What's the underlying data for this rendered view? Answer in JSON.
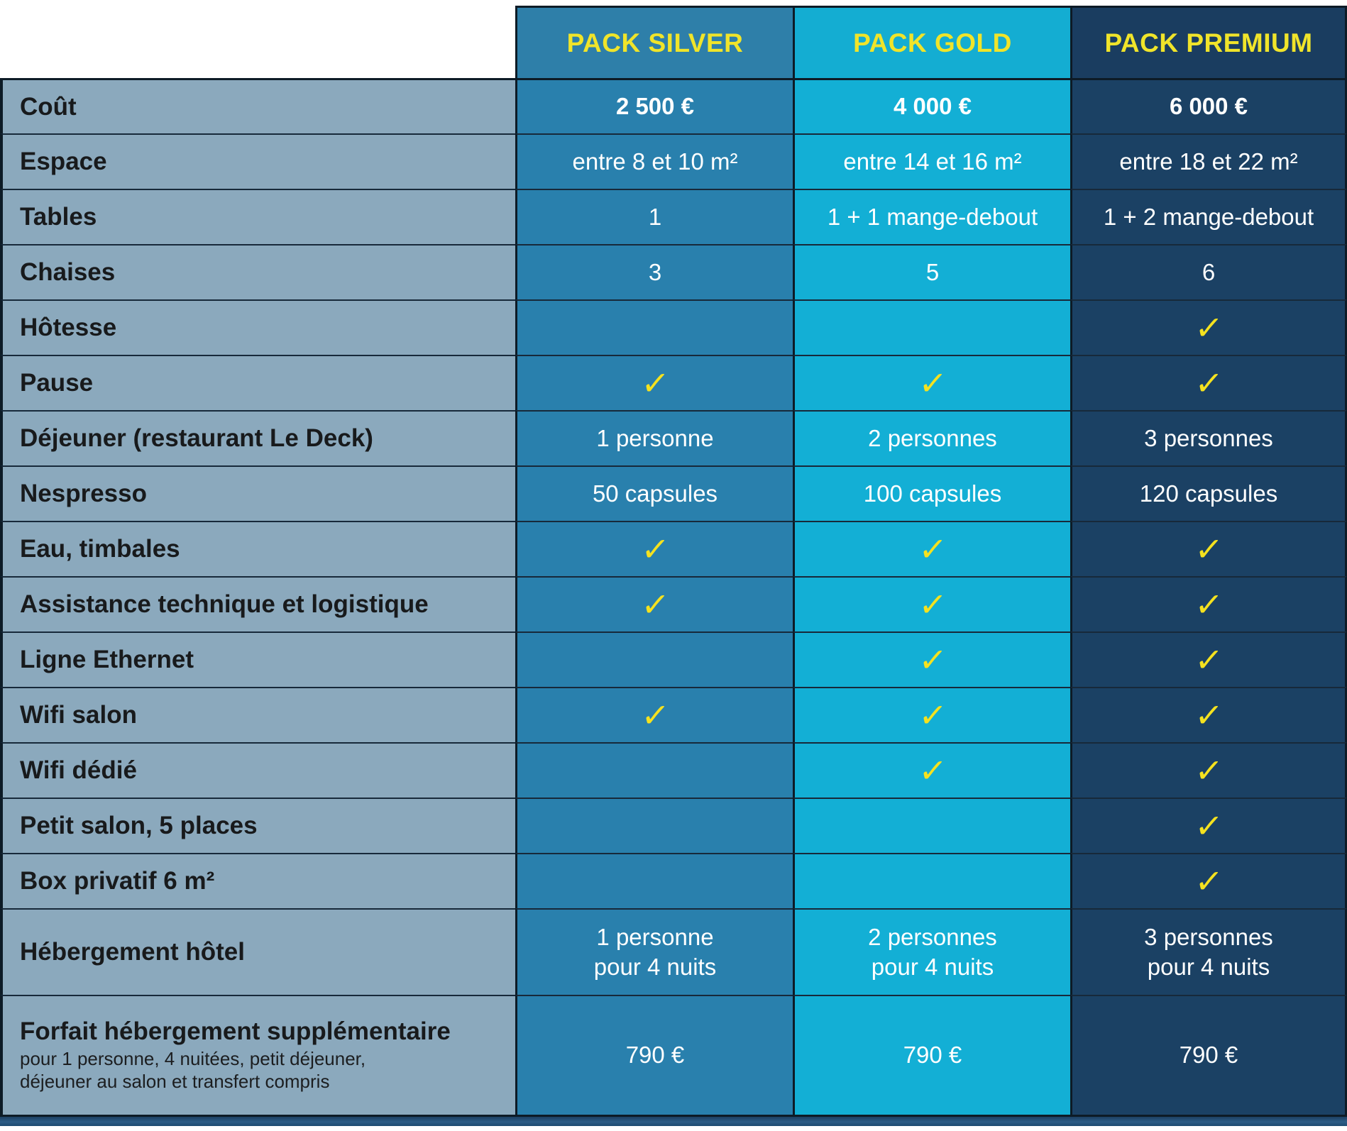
{
  "table": {
    "columns": [
      {
        "id": "silver",
        "label": "PACK SILVER"
      },
      {
        "id": "gold",
        "label": "PACK GOLD"
      },
      {
        "id": "premium",
        "label": "PACK PREMIUM"
      }
    ],
    "rows": [
      {
        "label": "Coût",
        "values": [
          "2 500 €",
          "4 000 €",
          "6 000 €"
        ],
        "bold_values": true
      },
      {
        "label": "Espace",
        "values": [
          "entre 8 et 10 m²",
          "entre 14 et 16 m²",
          "entre 18 et 22 m²"
        ]
      },
      {
        "label": "Tables",
        "values": [
          "1",
          "1 + 1 mange-debout",
          "1 + 2 mange-debout"
        ]
      },
      {
        "label": "Chaises",
        "values": [
          "3",
          "5",
          "6"
        ]
      },
      {
        "label": "Hôtesse",
        "values": [
          "",
          "",
          "✓"
        ]
      },
      {
        "label": "Pause",
        "values": [
          "✓",
          "✓",
          "✓"
        ]
      },
      {
        "label": "Déjeuner (restaurant Le Deck)",
        "values": [
          "1 personne",
          "2 personnes",
          "3 personnes"
        ]
      },
      {
        "label": "Nespresso",
        "values": [
          "50 capsules",
          "100 capsules",
          "120 capsules"
        ]
      },
      {
        "label": "Eau, timbales",
        "values": [
          "✓",
          "✓",
          "✓"
        ]
      },
      {
        "label": "Assistance technique et logistique",
        "values": [
          "✓",
          "✓",
          "✓"
        ]
      },
      {
        "label": "Ligne Ethernet",
        "values": [
          "",
          "✓",
          "✓"
        ]
      },
      {
        "label": "Wifi salon",
        "values": [
          "✓",
          "✓",
          "✓"
        ]
      },
      {
        "label": "Wifi dédié",
        "values": [
          "",
          "✓",
          "✓"
        ]
      },
      {
        "label": "Petit salon, 5 places",
        "values": [
          "",
          "",
          "✓"
        ]
      },
      {
        "label": "Box privatif 6 m²",
        "values": [
          "",
          "",
          "✓"
        ]
      },
      {
        "label": "Hébergement hôtel",
        "values": [
          "1 personne\npour 4 nuits",
          "2 personnes\npour 4 nuits",
          "3 personnes\npour 4 nuits"
        ]
      },
      {
        "label": "Forfait hébergement supplémentaire",
        "sublabel": "pour 1 personne, 4 nuitées, petit déjeuner,\ndéjeuner au salon et transfert compris",
        "values": [
          "790 €",
          "790 €",
          "790 €"
        ]
      }
    ]
  },
  "colors": {
    "label_column_bg": "#8BA9BD",
    "column_bg": [
      "#2980AD",
      "#13AFD5",
      "#1B4164"
    ],
    "header_bg": [
      "#2E7FA9",
      "#14ADD2",
      "#1A3D60"
    ],
    "header_text_yellow": "#F0E42A",
    "check_yellow": "#F5E21F",
    "value_text": "#FFFFFF",
    "border_dark": "#0D1B26"
  }
}
